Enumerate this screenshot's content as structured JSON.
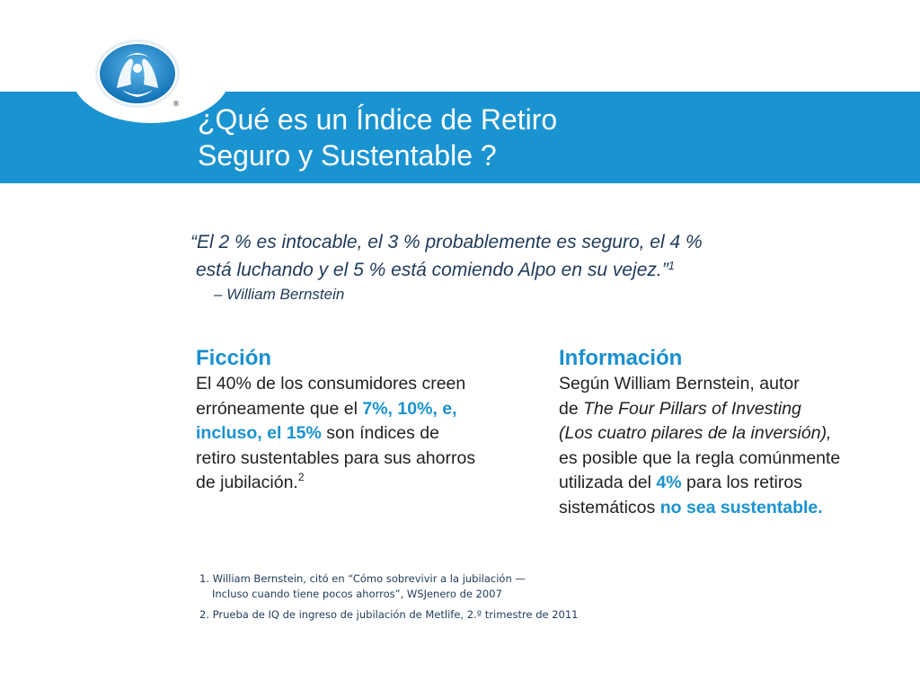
{
  "header": {
    "title_line1": "¿Qué es un Índice de Retiro",
    "title_line2": "Seguro y Sustentable ?",
    "brand_color": "#1a93d1"
  },
  "quote": {
    "line1": "“El 2 % es intocable, el 3 % probablemente es seguro, el 4 %",
    "line2": "está luchando y el 5 % está comiendo Alpo en su vejez.”",
    "ref": "1",
    "attribution": "– William Bernstein"
  },
  "fiction": {
    "heading": "Ficción",
    "line1": "El 40% de los consumidores creen",
    "line2_pre": "erróneamente que el ",
    "line2_hl": "7%, 10%, e,",
    "line3_hl": "incluso, el 15%",
    "line3_post": " son índices de",
    "line4": "retiro sustentables para sus ahorros",
    "line5": "de jubilación.",
    "ref": "2"
  },
  "information": {
    "heading": "Información",
    "line1": "Según William Bernstein, autor",
    "line2_pre": "de ",
    "line2_italic": "The Four Pillars of Investing",
    "line3_italic": "(Los cuatro pilares de la inversión),",
    "line4": "es posible que la regla comúnmente",
    "line5_pre": "utilizada del ",
    "line5_hl": "4%",
    "line5_post": " para los retiros",
    "line6_pre": "sistemáticos ",
    "line6_hl": "no sea sustentable."
  },
  "footnotes": {
    "fn1_line1": "1. William Bernstein, citó en “Cómo sobrevivir a la jubilación —",
    "fn1_line2": "Incluso cuando tiene pocos ahorros”, WSJenero de 2007",
    "fn2": "2. Prueba de IQ de ingreso de jubilación de Metlife, 2.º trimestre de 2011"
  },
  "logo": {
    "icon": "allstate-hands-logo",
    "mark": "®"
  }
}
